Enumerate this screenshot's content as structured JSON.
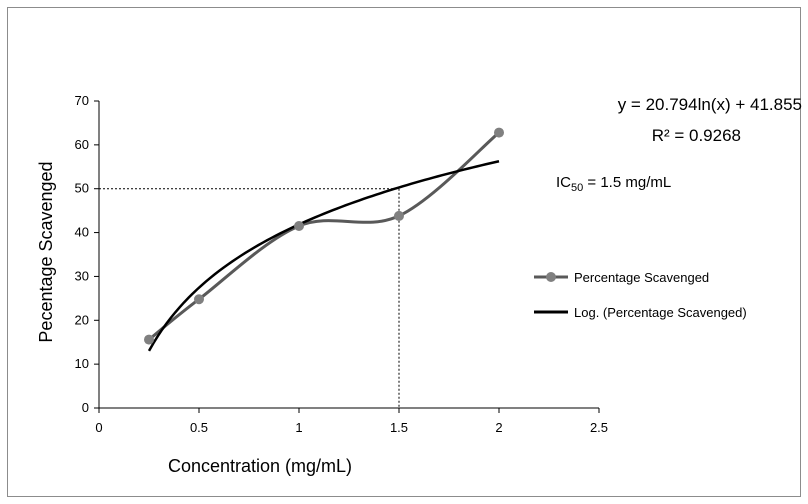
{
  "chart_data": {
    "type": "line",
    "title": "",
    "xlabel": "Concentration (mg/mL)",
    "ylabel": "Pecentage Scavenged",
    "xlim": [
      0,
      2.5
    ],
    "ylim": [
      0,
      70
    ],
    "xticks": [
      "0",
      "0.5",
      "1",
      "1.5",
      "2",
      "2.5"
    ],
    "yticks": [
      "0",
      "10",
      "20",
      "30",
      "40",
      "50",
      "60",
      "70"
    ],
    "grid": false,
    "legend_position": "right",
    "series": [
      {
        "name": "Percentage Scavenged",
        "kind": "line-markers",
        "color": "#595959",
        "x": [
          0.25,
          0.5,
          1,
          1.5,
          2
        ],
        "y": [
          15.6,
          24.8,
          41.5,
          43.8,
          62.8
        ]
      },
      {
        "name": "Log. (Percentage Scavenged)",
        "kind": "trendline-log",
        "color": "#000000",
        "a": 20.794,
        "b": 41.855,
        "x_range": [
          0.25,
          2
        ]
      }
    ],
    "reference_lines": {
      "x": 1.5,
      "y": 50,
      "style": "dotted"
    },
    "annotations": {
      "equation": "y = 20.794ln(x) + 41.855",
      "r_squared": "R² = 0.9268",
      "ic_prefix": "IC",
      "ic_subscript": "50",
      "ic_suffix": " = 1.5 mg/mL"
    }
  }
}
